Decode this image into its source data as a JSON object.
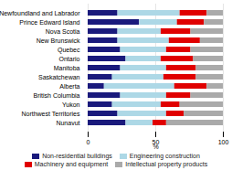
{
  "chart_data": {
    "type": "bar",
    "orientation": "horizontal",
    "stacked": true,
    "categories": [
      "Newfoundland and Labrador",
      "Prince Edward Island",
      "Nova Scotia",
      "New Brunswick",
      "Quebec",
      "Ontario",
      "Manitoba",
      "Saskatchewan",
      "Alberta",
      "British Columbia",
      "Yukon",
      "Northwest Territories",
      "Nunavut"
    ],
    "series": [
      {
        "name": "Non-residential buildings",
        "color": "#1a1a7c",
        "values": [
          22,
          38,
          22,
          22,
          24,
          28,
          24,
          18,
          12,
          24,
          18,
          22,
          28
        ]
      },
      {
        "name": "Engineering construction",
        "color": "#add8e6",
        "values": [
          46,
          28,
          32,
          38,
          34,
          26,
          34,
          38,
          52,
          34,
          36,
          36,
          20
        ]
      },
      {
        "name": "Machinery and equipment",
        "color": "#e00000",
        "values": [
          20,
          20,
          22,
          23,
          18,
          24,
          22,
          24,
          24,
          18,
          14,
          13,
          10
        ]
      },
      {
        "name": "Intellectual property products",
        "color": "#aaaaaa",
        "values": [
          12,
          14,
          24,
          17,
          24,
          22,
          20,
          20,
          12,
          24,
          32,
          29,
          42
        ]
      }
    ],
    "xlabel": "%",
    "xlim": [
      0,
      100
    ],
    "xticks": [
      0,
      50,
      100
    ],
    "grid": true,
    "legend": "bottom"
  }
}
